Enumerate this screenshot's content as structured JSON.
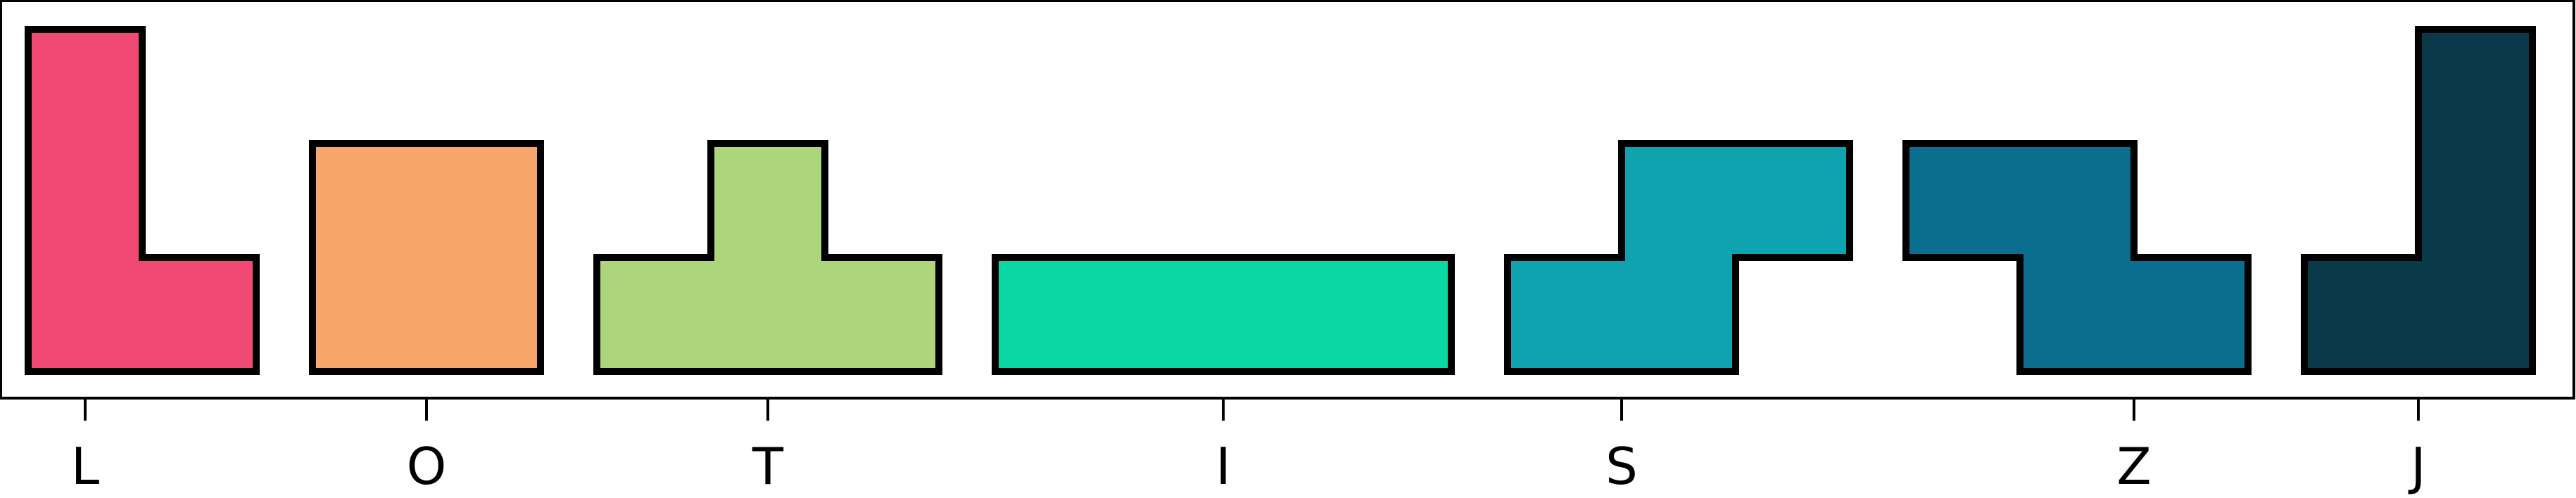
{
  "chart_data": {
    "type": "diagram",
    "grid": false,
    "legend": "none",
    "title": "",
    "xlabel": "",
    "ylabel": "",
    "pieces": [
      {
        "name": "L",
        "color": "#f04a74",
        "cells": [
          [
            0,
            0
          ],
          [
            0,
            1
          ],
          [
            0,
            2
          ],
          [
            1,
            0
          ]
        ]
      },
      {
        "name": "O",
        "color": "#f9a66c",
        "cells": [
          [
            0,
            0
          ],
          [
            1,
            0
          ],
          [
            0,
            1
          ],
          [
            1,
            1
          ]
        ]
      },
      {
        "name": "T",
        "color": "#add57c",
        "cells": [
          [
            0,
            0
          ],
          [
            1,
            0
          ],
          [
            2,
            0
          ],
          [
            1,
            1
          ]
        ]
      },
      {
        "name": "I",
        "color": "#0bd7a2",
        "cells": [
          [
            0,
            0
          ],
          [
            1,
            0
          ],
          [
            2,
            0
          ],
          [
            3,
            0
          ]
        ]
      },
      {
        "name": "S",
        "color": "#0ea3ae",
        "cells": [
          [
            0,
            0
          ],
          [
            1,
            0
          ],
          [
            1,
            1
          ],
          [
            2,
            1
          ]
        ]
      },
      {
        "name": "Z",
        "color": "#0c6e8e",
        "cells": [
          [
            1,
            0
          ],
          [
            2,
            0
          ],
          [
            0,
            1
          ],
          [
            1,
            1
          ]
        ]
      },
      {
        "name": "J",
        "color": "#0a3a4a",
        "cells": [
          [
            1,
            0
          ],
          [
            1,
            1
          ],
          [
            1,
            2
          ],
          [
            0,
            0
          ]
        ]
      }
    ]
  }
}
